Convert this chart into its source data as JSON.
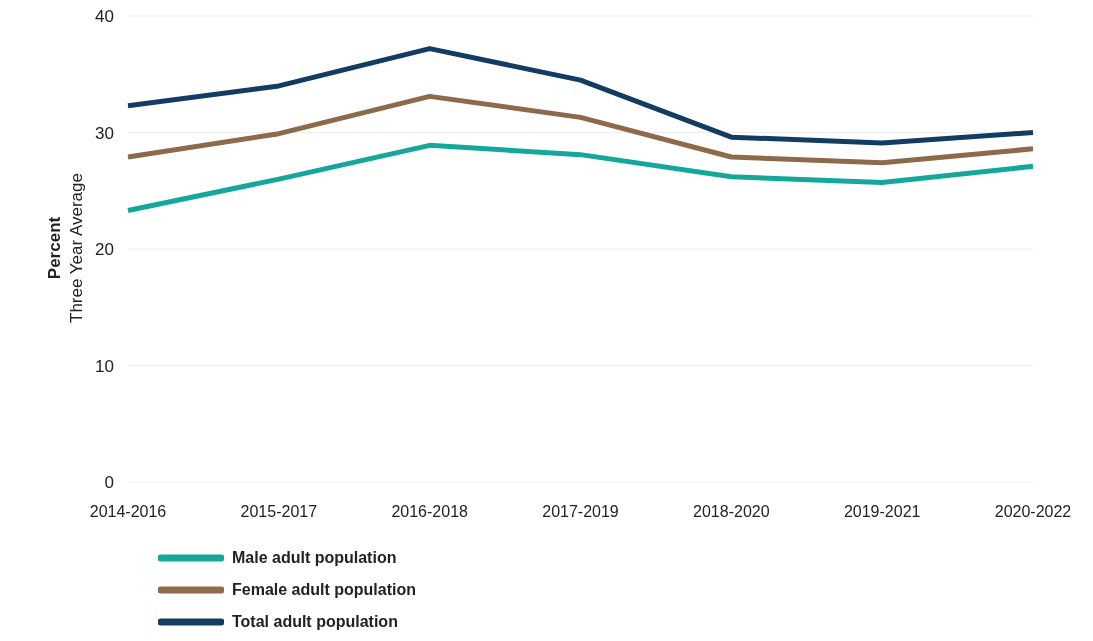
{
  "chart_data": {
    "type": "line",
    "ylabel": "Percent\nThree Year Average",
    "categories": [
      "2014-2016",
      "2015-2017",
      "2016-2018",
      "2017-2019",
      "2018-2020",
      "2019-2021",
      "2020-2022"
    ],
    "series": [
      {
        "name": "Male adult population",
        "color": "#14a89a",
        "values": [
          23.3,
          26.0,
          28.9,
          28.1,
          26.2,
          25.7,
          27.1
        ]
      },
      {
        "name": "Female adult population",
        "color": "#8c6a4a",
        "values": [
          27.9,
          29.9,
          33.1,
          31.3,
          27.9,
          27.4,
          28.6
        ]
      },
      {
        "name": "Total adult population",
        "color": "#133c63",
        "values": [
          32.3,
          34.0,
          37.2,
          34.5,
          29.6,
          29.1,
          30.0
        ]
      }
    ],
    "ylim": [
      0,
      40
    ],
    "yticks": [
      0,
      10,
      20,
      30,
      40
    ],
    "grid": "y",
    "legend": "bottom left",
    "marker": "none",
    "line_style": "solid"
  }
}
